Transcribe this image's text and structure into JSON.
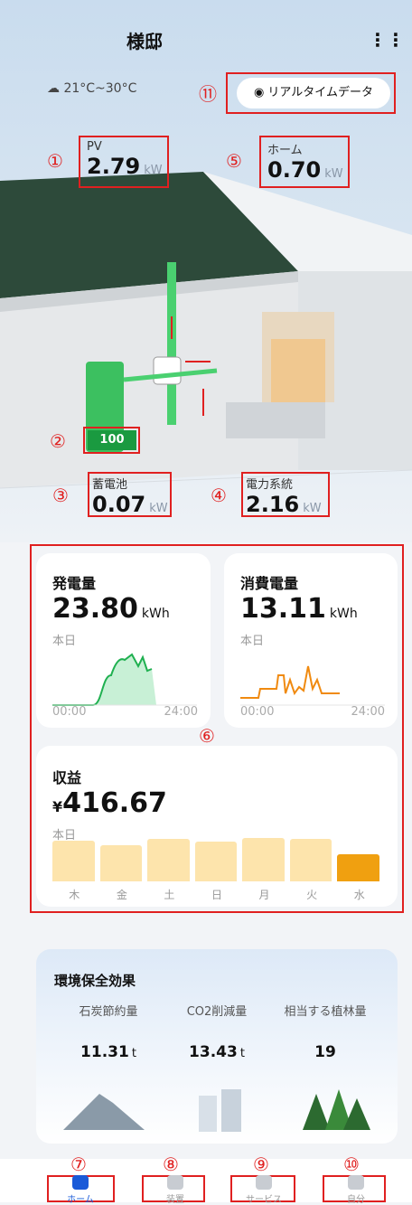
{
  "header": {
    "title": "様邸",
    "weather": "21°C~30°C",
    "realtime_button": "リアルタイムデータ"
  },
  "flows": {
    "pv": {
      "label": "PV",
      "value": "2.79",
      "unit": "kW"
    },
    "home": {
      "label": "ホーム",
      "value": "0.70",
      "unit": "kW"
    },
    "battery": {
      "label": "蓄電池",
      "value": "0.07",
      "unit": "kW"
    },
    "grid": {
      "label": "電力系統",
      "value": "2.16",
      "unit": "kW"
    },
    "battery_level": "100"
  },
  "markers": [
    "①",
    "②",
    "③",
    "④",
    "⑤",
    "⑥",
    "⑦",
    "⑧",
    "⑨",
    "⑩",
    "⑪"
  ],
  "generation": {
    "title": "発電量",
    "value": "23.80",
    "unit": "kWh",
    "period": "本日",
    "start": "00:00",
    "end": "24:00"
  },
  "consumption": {
    "title": "消費電量",
    "value": "13.11",
    "unit": "kWh",
    "period": "本日",
    "start": "00:00",
    "end": "24:00"
  },
  "income": {
    "title": "収益",
    "currency": "¥",
    "value": "416.67",
    "period": "本日",
    "days": [
      "木",
      "金",
      "土",
      "日",
      "月",
      "火",
      "水"
    ],
    "bars": [
      45,
      40,
      47,
      44,
      48,
      47,
      30
    ]
  },
  "environment": {
    "title": "環境保全効果",
    "items": [
      {
        "label": "石炭節約量",
        "value": "11.31",
        "unit": "t"
      },
      {
        "label": "CO2削減量",
        "value": "13.43",
        "unit": "t"
      },
      {
        "label": "相当する植林量",
        "value": "19"
      }
    ]
  },
  "nav": [
    "ホーム",
    "装置",
    "サービス",
    "自分"
  ]
}
